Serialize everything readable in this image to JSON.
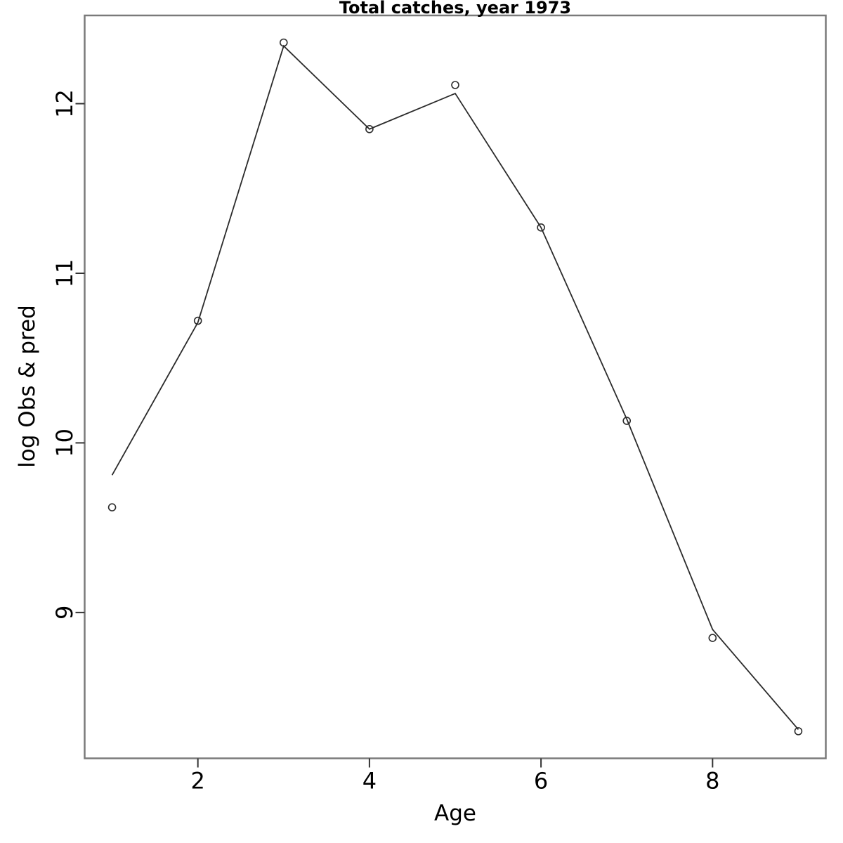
{
  "title": "Total catches, year 1973",
  "colors": {
    "background": "#ffffff",
    "box_border": "#7a7a7a",
    "tick": "#333333",
    "line": "#2b2b2b",
    "point_stroke": "#2b2b2b",
    "text": "#000000"
  },
  "chart_data": {
    "type": "line",
    "title": "Total catches, year 1973",
    "xlabel": "Age",
    "ylabel": "log Obs & pred",
    "x": [
      1,
      2,
      3,
      4,
      5,
      6,
      7,
      8,
      9
    ],
    "series": [
      {
        "name": "observed",
        "marker": "open-circle",
        "line": false,
        "values": [
          9.62,
          10.72,
          12.36,
          11.85,
          12.11,
          11.27,
          10.13,
          8.85,
          8.3
        ]
      },
      {
        "name": "predicted",
        "marker": "none",
        "line": true,
        "values": [
          9.81,
          10.71,
          12.34,
          11.85,
          12.06,
          11.27,
          10.14,
          8.9,
          8.31
        ]
      }
    ],
    "xlim": [
      0.68,
      9.32
    ],
    "ylim": [
      8.14,
      12.52
    ],
    "xticks": [
      2,
      4,
      6,
      8
    ],
    "yticks": [
      9,
      10,
      11,
      12
    ],
    "grid": false,
    "legend": "none"
  }
}
